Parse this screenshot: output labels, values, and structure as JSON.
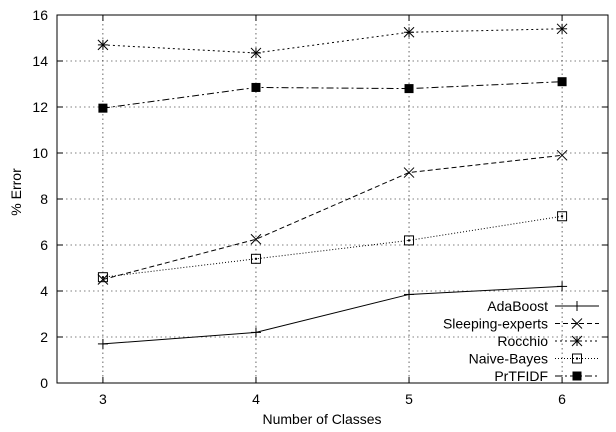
{
  "chart_data": {
    "type": "line",
    "title": "",
    "xlabel": "Number of Classes",
    "ylabel": "% Error",
    "x_ticks": [
      3,
      4,
      5,
      6
    ],
    "y_ticks": [
      0,
      2,
      4,
      6,
      8,
      10,
      12,
      14,
      16
    ],
    "xlim": [
      2.7,
      6.3
    ],
    "ylim": [
      0,
      16
    ],
    "grid": true,
    "legend_position": "bottom-right",
    "x": [
      3,
      4,
      5,
      6
    ],
    "series": [
      {
        "name": "AdaBoost",
        "values": [
          1.7,
          2.2,
          3.85,
          4.2
        ],
        "marker": "plus",
        "dash": "solid"
      },
      {
        "name": "Sleeping-experts",
        "values": [
          4.5,
          6.25,
          9.15,
          9.9
        ],
        "marker": "cross",
        "dash": "dashed"
      },
      {
        "name": "Rocchio",
        "values": [
          14.7,
          14.35,
          15.25,
          15.4
        ],
        "marker": "star",
        "dash": "dotted"
      },
      {
        "name": "Naive-Bayes",
        "values": [
          4.6,
          5.4,
          6.2,
          7.25
        ],
        "marker": "open-square",
        "dash": "fine-dotted"
      },
      {
        "name": "PrTFIDF",
        "values": [
          11.95,
          12.85,
          12.8,
          13.1
        ],
        "marker": "filled-square",
        "dash": "dash-dot"
      }
    ]
  }
}
